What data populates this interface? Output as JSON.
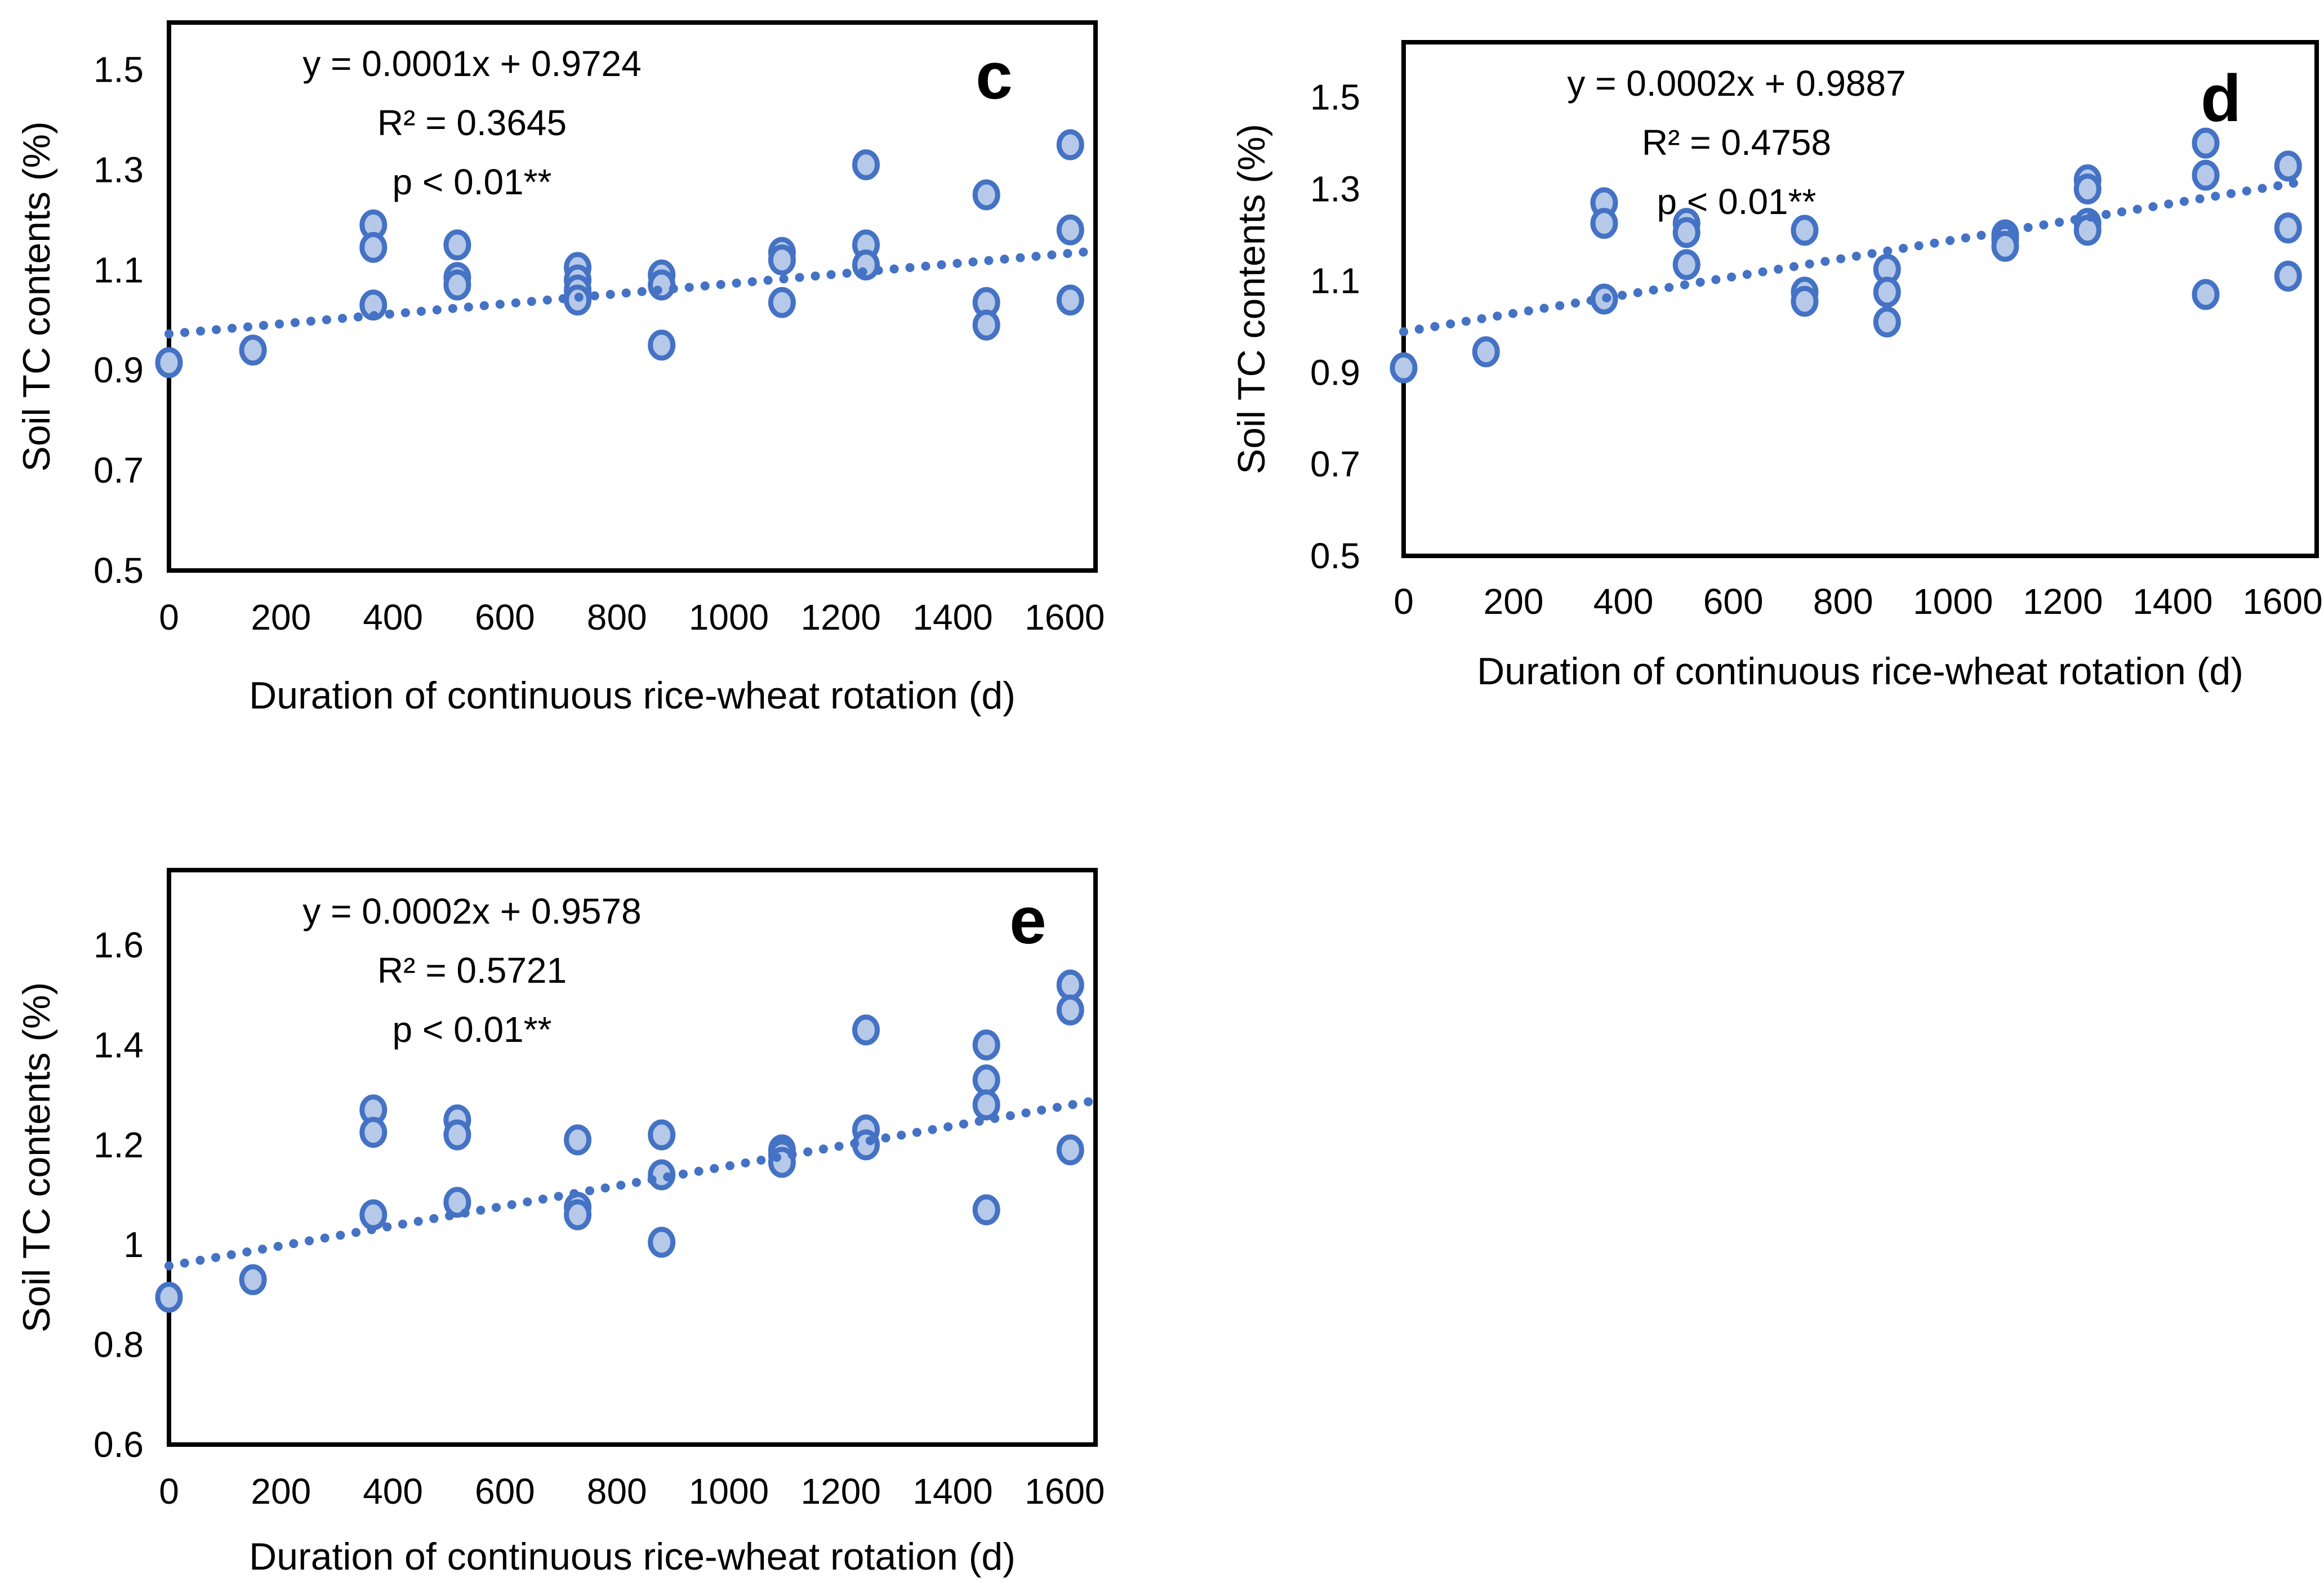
{
  "figure": {
    "background": "#ffffff",
    "description": "Three scatter panels (c, d, e) of soil TC contents vs duration of continuous rice-wheat rotation, each with a dotted linear trendline and regression annotation"
  },
  "style": {
    "point_fill": "#b7c9e8",
    "point_stroke": "#4472c4",
    "trend_color": "#4472c4",
    "border_color": "#000000"
  },
  "chart_data": [
    {
      "type": "scatter",
      "panel_label": "c",
      "equation": "y = 0.0001x + 0.9724",
      "r_squared": "R² = 0.3645",
      "p_value": "p < 0.01**",
      "xlabel": "Duration of continuous rice-wheat rotation  (d)",
      "ylabel": "Soil TC contents  (%)",
      "x_ticks": [
        0,
        200,
        400,
        600,
        800,
        1000,
        1200,
        1400,
        1600
      ],
      "x_tick_labels": [
        "0",
        "200",
        "400",
        "600",
        "800",
        "1000",
        "1200",
        "1400",
        "1600"
      ],
      "y_ticks": [
        0.5,
        0.7,
        0.9,
        1.1,
        1.3,
        1.5
      ],
      "y_tick_labels": [
        "0.5",
        "0.7",
        "0.9",
        "1.1",
        "1.3",
        "1.5"
      ],
      "xlim": [
        0,
        1655
      ],
      "ylim": [
        0.5,
        1.594
      ],
      "grid": false,
      "legend": "none",
      "trend": {
        "slope": 0.0001,
        "intercept": 0.9724,
        "x_range": [
          0,
          1645
        ],
        "style": "dotted"
      },
      "points": [
        [
          0,
          0.915
        ],
        [
          150,
          0.94
        ],
        [
          365,
          1.19
        ],
        [
          365,
          1.145
        ],
        [
          365,
          1.03
        ],
        [
          515,
          1.15
        ],
        [
          515,
          1.085
        ],
        [
          515,
          1.07
        ],
        [
          730,
          1.105
        ],
        [
          730,
          1.08
        ],
        [
          730,
          1.06
        ],
        [
          730,
          1.04
        ],
        [
          880,
          1.09
        ],
        [
          880,
          1.07
        ],
        [
          880,
          0.95
        ],
        [
          1095,
          1.135
        ],
        [
          1095,
          1.12
        ],
        [
          1095,
          1.035
        ],
        [
          1245,
          1.31
        ],
        [
          1245,
          1.15
        ],
        [
          1245,
          1.11
        ],
        [
          1460,
          1.25
        ],
        [
          1460,
          1.035
        ],
        [
          1460,
          0.99
        ],
        [
          1610,
          1.35
        ],
        [
          1610,
          1.18
        ],
        [
          1610,
          1.04
        ]
      ],
      "geom": {
        "plot": {
          "l": 300,
          "t": 40,
          "r": 1945,
          "b": 1013
        },
        "eq_cx": 838,
        "eq_baselines": [
          135,
          240,
          345
        ],
        "panel_pos": {
          "x": 1765,
          "y": 175
        },
        "ytick_right": 255,
        "xtick_baseline": 1118,
        "xtitle_baseline": 1258,
        "ytitle_cx": 88
      }
    },
    {
      "type": "scatter",
      "panel_label": "d",
      "equation": "y = 0.0002x + 0.9887",
      "r_squared": "R² = 0.4758",
      "p_value": "p < 0.01**",
      "xlabel": "Duration of continuous rice-wheat rotation  (d)",
      "ylabel": "Soil TC contents  (%)",
      "x_ticks": [
        0,
        200,
        400,
        600,
        800,
        1000,
        1200,
        1400,
        1600
      ],
      "x_tick_labels": [
        "0",
        "200",
        "400",
        "600",
        "800",
        "1000",
        "1200",
        "1400",
        "1600"
      ],
      "y_ticks": [
        0.5,
        0.7,
        0.9,
        1.1,
        1.3,
        1.5
      ],
      "y_tick_labels": [
        "0.5",
        "0.7",
        "0.9",
        "1.1",
        "1.3",
        "1.5"
      ],
      "xlim": [
        0,
        1662
      ],
      "ylim": [
        0.5,
        1.62
      ],
      "grid": false,
      "legend": "none",
      "trend": {
        "slope": 0.0002,
        "intercept": 0.9887,
        "x_range": [
          0,
          1640
        ],
        "style": "dotted"
      },
      "points": [
        [
          0,
          0.91
        ],
        [
          150,
          0.945
        ],
        [
          365,
          1.27
        ],
        [
          365,
          1.225
        ],
        [
          365,
          1.06
        ],
        [
          515,
          1.225
        ],
        [
          515,
          1.205
        ],
        [
          515,
          1.135
        ],
        [
          730,
          1.21
        ],
        [
          730,
          1.075
        ],
        [
          730,
          1.055
        ],
        [
          880,
          1.125
        ],
        [
          880,
          1.075
        ],
        [
          880,
          1.01
        ],
        [
          1095,
          1.2
        ],
        [
          1095,
          1.19
        ],
        [
          1095,
          1.175
        ],
        [
          1245,
          1.32
        ],
        [
          1245,
          1.3
        ],
        [
          1245,
          1.225
        ],
        [
          1245,
          1.21
        ],
        [
          1460,
          1.4
        ],
        [
          1460,
          1.33
        ],
        [
          1460,
          1.07
        ],
        [
          1610,
          1.35
        ],
        [
          1610,
          1.215
        ],
        [
          1610,
          1.11
        ]
      ],
      "geom": {
        "plot": {
          "l": 429,
          "t": 75,
          "r": 2050,
          "b": 987
        },
        "eq_cx": 1020,
        "eq_baselines": [
          170,
          275,
          380
        ],
        "panel_pos": {
          "x": 1880,
          "y": 215
        },
        "ytick_right": 352,
        "xtick_baseline": 1090,
        "xtitle_baseline": 1215,
        "ytitle_cx": 182
      }
    },
    {
      "type": "scatter",
      "panel_label": "e",
      "equation": "y = 0.0002x + 0.9578",
      "r_squared": "R² = 0.5721",
      "p_value": "p < 0.01**",
      "xlabel": "Duration of continuous rice-wheat rotation  (d)",
      "ylabel": "Soil TC contents  (%)",
      "x_ticks": [
        0,
        200,
        400,
        600,
        800,
        1000,
        1200,
        1400,
        1600
      ],
      "x_tick_labels": [
        "0",
        "200",
        "400",
        "600",
        "800",
        "1000",
        "1200",
        "1400",
        "1600"
      ],
      "y_ticks": [
        0.6,
        0.8,
        1.0,
        1.2,
        1.4,
        1.6
      ],
      "y_tick_labels": [
        "0.6",
        "0.8",
        "1",
        "1.2",
        "1.4",
        "1.6"
      ],
      "xlim": [
        0,
        1655
      ],
      "ylim": [
        0.6,
        1.75
      ],
      "grid": false,
      "legend": "none",
      "trend": {
        "slope": 0.0002,
        "intercept": 0.9578,
        "x_range": [
          0,
          1645
        ],
        "style": "dotted"
      },
      "points": [
        [
          0,
          0.895
        ],
        [
          150,
          0.93
        ],
        [
          365,
          1.27
        ],
        [
          365,
          1.225
        ],
        [
          365,
          1.06
        ],
        [
          515,
          1.25
        ],
        [
          515,
          1.22
        ],
        [
          515,
          1.085
        ],
        [
          730,
          1.21
        ],
        [
          730,
          1.075
        ],
        [
          730,
          1.06
        ],
        [
          880,
          1.22
        ],
        [
          880,
          1.14
        ],
        [
          880,
          1.005
        ],
        [
          1095,
          1.19
        ],
        [
          1095,
          1.18
        ],
        [
          1095,
          1.165
        ],
        [
          1245,
          1.43
        ],
        [
          1245,
          1.23
        ],
        [
          1245,
          1.2
        ],
        [
          1460,
          1.4
        ],
        [
          1460,
          1.33
        ],
        [
          1460,
          1.28
        ],
        [
          1460,
          1.07
        ],
        [
          1610,
          1.52
        ],
        [
          1610,
          1.47
        ],
        [
          1610,
          1.19
        ]
      ],
      "geom": {
        "plot": {
          "l": 300,
          "t": 133,
          "r": 1945,
          "b": 1153
        },
        "eq_cx": 838,
        "eq_baselines": [
          228,
          333,
          438
        ],
        "panel_pos": {
          "x": 1825,
          "y": 263
        },
        "ytick_right": 255,
        "xtick_baseline": 1258,
        "xtitle_baseline": 1375,
        "ytitle_cx": 88
      }
    }
  ]
}
